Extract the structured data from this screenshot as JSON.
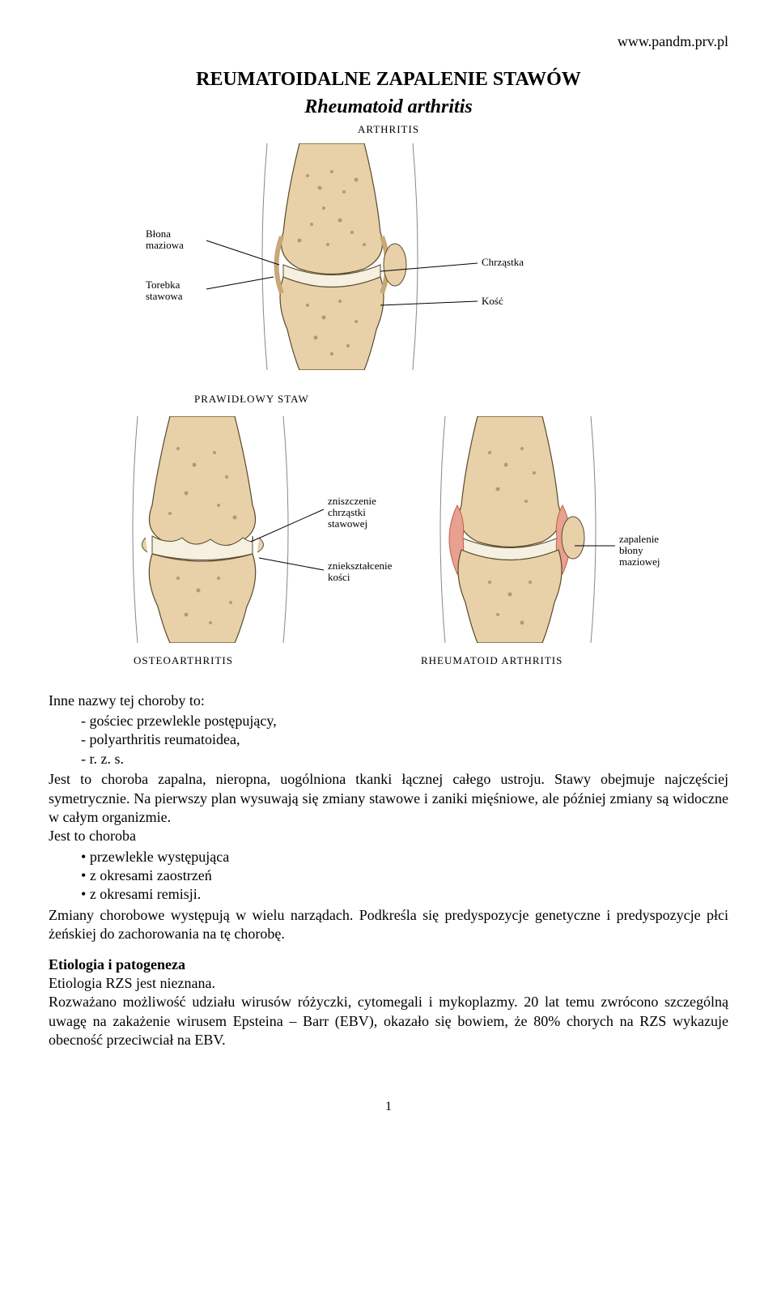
{
  "header": {
    "url": "www.pandm.prv.pl"
  },
  "title": {
    "line1": "REUMATOIDALNE ZAPALENIE STAWÓW",
    "line2": "Rheumatoid arthritis"
  },
  "diagram": {
    "overall_label": "ARTHRITIS",
    "bone_fill": "#e8d0a8",
    "bone_stroke": "#5a4a2a",
    "cartilage_fill": "#f5f0e0",
    "capsule_fill": "#c8a878",
    "synovium_fill": "#e8a090",
    "bg": "#ffffff",
    "normal": {
      "labels": {
        "blona": "Błona\nmaziowa",
        "torebka": "Torebka\nstawowa",
        "chrzastka": "Chrząstka",
        "kosc": "Kość"
      },
      "caption": "PRAWIDŁOWY STAW"
    },
    "osteo": {
      "labels": {
        "zniszczenie": "zniszczenie\nchrząstki\nstawowej",
        "znieksztalcenie": "zniekształcenie\nkości"
      },
      "caption": "OSTEOARTHRITIS"
    },
    "rheum": {
      "labels": {
        "zapalenie": "zapalenie\nbłony\nmaziowej"
      },
      "caption": "RHEUMATOID ARTHRITIS"
    }
  },
  "intro": {
    "lead": "Inne nazwy tej choroby to:",
    "items": [
      "gościec przewlekle postępujący,",
      "polyarthritis reumatoidea,",
      "r. z. s."
    ],
    "para1": "Jest to choroba zapalna, nieropna, uogólniona tkanki łącznej całego ustroju. Stawy obejmuje najczęściej symetrycznie. Na pierwszy plan wysuwają się zmiany stawowe i zaniki mięśniowe, ale później zmiany są widoczne w całym organizmie.",
    "lead2": "Jest to choroba",
    "bullets": [
      "przewlekle występująca",
      "z okresami zaostrzeń",
      "z okresami remisji."
    ],
    "para2": "Zmiany chorobowe występują w wielu narządach. Podkreśla się predyspozycje genetyczne i predyspozycje płci żeńskiej do zachorowania na tę chorobę."
  },
  "etiology": {
    "heading": "Etiologia i patogeneza",
    "line1": "Etiologia RZS jest nieznana.",
    "para": "Rozważano możliwość udziału wirusów różyczki, cytomegali i mykoplazmy. 20 lat temu zwrócono szczególną uwagę na zakażenie wirusem Epsteina – Barr (EBV), okazało się bowiem, że 80% chorych na RZS wykazuje obecność przeciwciał na EBV."
  },
  "page_number": "1"
}
